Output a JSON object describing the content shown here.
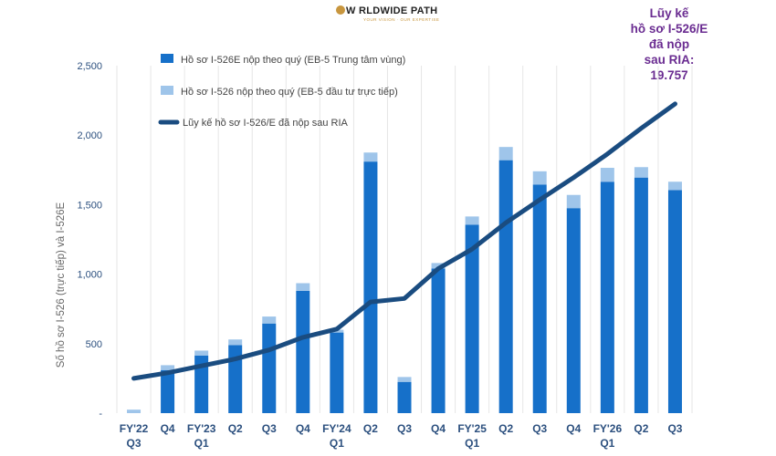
{
  "logo": {
    "main": "W RLDWIDE PATH",
    "tagline": "YOUR VISION · OUR EXPERTISE"
  },
  "annotation": {
    "lines": [
      "Lũy kế",
      "hồ sơ I-526/E",
      "đã nộp",
      "sau RIA:"
    ],
    "value": "19.757"
  },
  "chart_data": {
    "type": "bar",
    "ylabel": "Số hồ sơ I-526 (trực tiếp) và I-526E",
    "ylim": [
      0,
      2500
    ],
    "yticks": [
      {
        "value": 0,
        "label": "-"
      },
      {
        "value": 500,
        "label": "500"
      },
      {
        "value": 1000,
        "label": "1,000"
      },
      {
        "value": 1500,
        "label": "1,500"
      },
      {
        "value": 2000,
        "label": "2,000"
      },
      {
        "value": 2500,
        "label": "2,500"
      }
    ],
    "categories": [
      {
        "quarter": "Q3",
        "fy": "FY'22"
      },
      {
        "quarter": "Q4",
        "fy": ""
      },
      {
        "quarter": "Q1",
        "fy": "FY'23"
      },
      {
        "quarter": "Q2",
        "fy": ""
      },
      {
        "quarter": "Q3",
        "fy": ""
      },
      {
        "quarter": "Q4",
        "fy": ""
      },
      {
        "quarter": "Q1",
        "fy": "FY'24"
      },
      {
        "quarter": "Q2",
        "fy": ""
      },
      {
        "quarter": "Q3",
        "fy": ""
      },
      {
        "quarter": "Q4",
        "fy": ""
      },
      {
        "quarter": "Q1",
        "fy": "FY'25"
      },
      {
        "quarter": "Q2",
        "fy": ""
      },
      {
        "quarter": "Q3",
        "fy": ""
      },
      {
        "quarter": "Q4",
        "fy": ""
      },
      {
        "quarter": "Q1",
        "fy": "FY'26"
      },
      {
        "quarter": "Q2",
        "fy": ""
      },
      {
        "quarter": "Q3",
        "fy": ""
      }
    ],
    "series": [
      {
        "name": "Hồ sơ I-526E nộp theo quý (EB-5 Trung tâm vùng)",
        "kind": "bar-stack",
        "color": "#1670c9",
        "values": [
          0,
          310,
          415,
          490,
          645,
          880,
          580,
          1810,
          225,
          1040,
          1355,
          1820,
          1645,
          1475,
          1665,
          1695,
          1605
        ]
      },
      {
        "name": "Hồ sơ I-526 nộp theo quý (EB-5 đầu tư trực tiếp)",
        "kind": "bar-stack",
        "color": "#9fc5ea",
        "values": [
          25,
          35,
          35,
          40,
          50,
          55,
          20,
          65,
          35,
          40,
          60,
          95,
          95,
          95,
          100,
          75,
          60
        ]
      },
      {
        "name": "Lũy kế hồ sơ I-526/E đã nộp sau RIA",
        "kind": "line",
        "color": "#1a4c80",
        "values": [
          250,
          290,
          340,
          390,
          455,
          545,
          605,
          800,
          825,
          1040,
          1180,
          1370,
          1535,
          1695,
          1865,
          2050,
          2225
        ]
      }
    ],
    "legend_position": "top-left",
    "grid": "vertical"
  }
}
